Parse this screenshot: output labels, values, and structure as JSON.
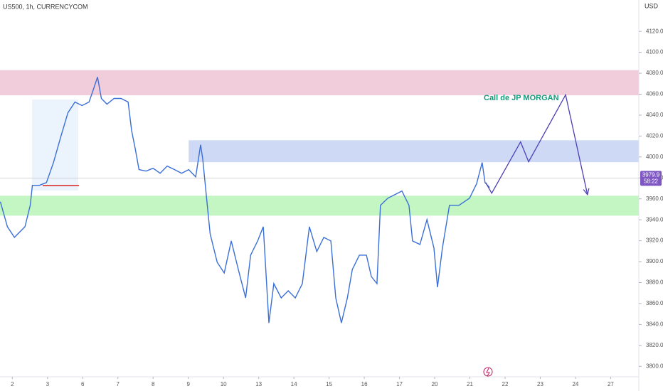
{
  "header": {
    "symbol": "US500, 1h, CURRENCYCOM",
    "currency": "USD"
  },
  "chart_data": {
    "type": "line",
    "color": "#3a6fd8",
    "x": [
      -0.34,
      -0.14,
      0.06,
      0.36,
      0.51,
      0.57,
      0.77,
      0.97,
      1.17,
      1.37,
      1.58,
      1.78,
      1.98,
      2.18,
      2.32,
      2.42,
      2.53,
      2.69,
      2.89,
      3.09,
      3.29,
      3.39,
      3.49,
      3.6,
      3.8,
      4.0,
      4.2,
      4.4,
      4.61,
      4.81,
      5.01,
      5.21,
      5.35,
      5.41,
      5.52,
      5.62,
      5.82,
      6.02,
      6.22,
      6.42,
      6.63,
      6.77,
      6.97,
      7.13,
      7.29,
      7.43,
      7.64,
      7.84,
      8.04,
      8.24,
      8.44,
      8.65,
      8.85,
      9.05,
      9.19,
      9.35,
      9.52,
      9.66,
      9.86,
      10.06,
      10.2,
      10.36,
      10.46,
      10.67,
      10.87,
      11.07,
      11.27,
      11.37,
      11.58,
      11.78,
      11.98,
      12.08,
      12.22,
      12.42,
      12.69,
      12.99,
      13.19,
      13.35,
      13.43,
      13.56
    ],
    "values": [
      3957.2,
      3933.4,
      3923.2,
      3933.4,
      3953.8,
      3972.9,
      3972.9,
      3975.6,
      3994.7,
      4018.5,
      4042.3,
      4052.5,
      4049.1,
      4052.5,
      4066.2,
      4076.4,
      4055.9,
      4050.5,
      4055.9,
      4055.9,
      4052.5,
      4025.3,
      4008.3,
      3987.9,
      3986.5,
      3989.2,
      3984.5,
      3991.3,
      3987.9,
      3984.5,
      3987.9,
      3981.1,
      4011.7,
      3998.1,
      3960.6,
      3926.6,
      3899.4,
      3889.2,
      3919.8,
      3892.6,
      3865.3,
      3906.2,
      3919.8,
      3933.4,
      3841.5,
      3879.0,
      3865.3,
      3872.2,
      3865.3,
      3879.0,
      3933.4,
      3909.6,
      3923.2,
      3919.8,
      3865.3,
      3841.5,
      3865.3,
      3892.6,
      3906.2,
      3906.2,
      3885.8,
      3879.0,
      3953.8,
      3960.6,
      3964.0,
      3967.5,
      3953.8,
      3919.8,
      3916.4,
      3940.2,
      3913.0,
      3875.6,
      3913.0,
      3953.8,
      3953.8,
      3960.6,
      3974.3,
      3994.7,
      3975.6,
      3970.9
    ],
    "xlim": [
      -0.35,
      17.8
    ],
    "xticks": [
      {
        "value": 0,
        "label": "2"
      },
      {
        "value": 1,
        "label": "3"
      },
      {
        "value": 2,
        "label": "6"
      },
      {
        "value": 3,
        "label": "7"
      },
      {
        "value": 4,
        "label": "8"
      },
      {
        "value": 5,
        "label": "9"
      },
      {
        "value": 6,
        "label": "10"
      },
      {
        "value": 7,
        "label": "13"
      },
      {
        "value": 8,
        "label": "14"
      },
      {
        "value": 9,
        "label": "15"
      },
      {
        "value": 10,
        "label": "16"
      },
      {
        "value": 11,
        "label": "17"
      },
      {
        "value": 12,
        "label": "20"
      },
      {
        "value": 13,
        "label": "21"
      },
      {
        "value": 14,
        "label": "22"
      },
      {
        "value": 15,
        "label": "23"
      },
      {
        "value": 16,
        "label": "24"
      },
      {
        "value": 17,
        "label": "27"
      }
    ],
    "ylim": [
      3790,
      4150
    ],
    "yticks": [
      {
        "value": 3800,
        "label": "3800.0"
      },
      {
        "value": 3820,
        "label": "3820.0"
      },
      {
        "value": 3840,
        "label": "3840.0"
      },
      {
        "value": 3860,
        "label": "3860.0"
      },
      {
        "value": 3880,
        "label": "3880.0"
      },
      {
        "value": 3900,
        "label": "3900.0"
      },
      {
        "value": 3920,
        "label": "3920.0"
      },
      {
        "value": 3940,
        "label": "3940.0"
      },
      {
        "value": 3960,
        "label": "3960.0"
      },
      {
        "value": 3980,
        "label": "3980.0"
      },
      {
        "value": 4000,
        "label": "4000.0"
      },
      {
        "value": 4020,
        "label": "4020.0"
      },
      {
        "value": 4040,
        "label": "4040.0"
      },
      {
        "value": 4060,
        "label": "4060.0"
      },
      {
        "value": 4080,
        "label": "4080.0"
      },
      {
        "value": 4100,
        "label": "4100.0"
      },
      {
        "value": 4120,
        "label": "4120.0"
      }
    ],
    "zones": [
      {
        "start": -0.35,
        "from": 4059,
        "to": 4083,
        "color": "#efc3d3"
      },
      {
        "start": 5.01,
        "from": 3995,
        "to": 4016,
        "color": "#c6d2f5"
      },
      {
        "start": -0.35,
        "from": 3944,
        "to": 3963,
        "color": "#b9f5b9"
      }
    ],
    "projection": {
      "color": "#4b3fb5",
      "x": [
        13.45,
        13.62,
        14.44,
        14.67,
        15.72,
        16.34
      ],
      "values": [
        3975.6,
        3965.4,
        4014.4,
        3995.4,
        4059.4,
        3964.1
      ]
    },
    "annotation": "Call de JP MORGAN",
    "last_price": 3979.9,
    "countdown": "58:22"
  }
}
